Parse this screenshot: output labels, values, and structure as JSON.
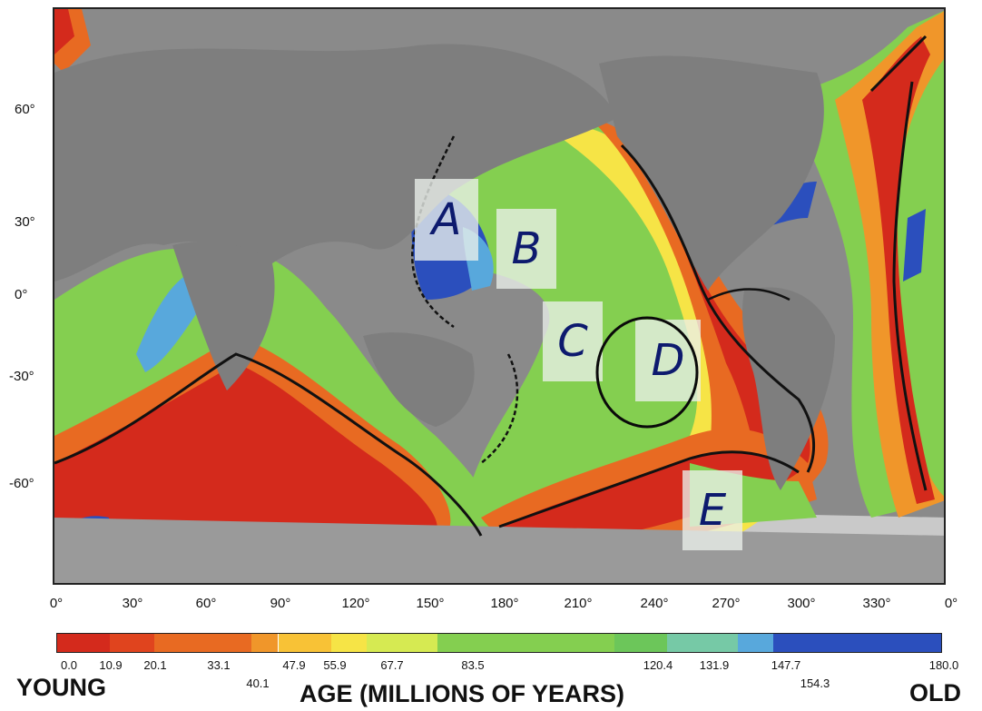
{
  "latitude_labels": [
    "60°",
    "30°",
    "0°",
    "-30°",
    "-60°"
  ],
  "longitude_labels": [
    "0°",
    "30°",
    "60°",
    "90°",
    "120°",
    "150°",
    "180°",
    "210°",
    "240°",
    "270°",
    "300°",
    "330°",
    "0°"
  ],
  "region_letters": [
    "A",
    "B",
    "C",
    "D",
    "E"
  ],
  "circled_letter": "D",
  "legend": {
    "ticks_upper": [
      "0.0",
      "10.9",
      "20.1",
      "33.1",
      "47.9",
      "55.9",
      "67.7",
      "83.5",
      "120.4",
      "131.9",
      "147.7",
      "180.0"
    ],
    "ticks_lower": [
      "40.1",
      "154.3"
    ],
    "young_label": "YOUNG",
    "old_label": "OLD",
    "axis_title": "AGE (MILLIONS OF YEARS)"
  },
  "colors": {
    "land": "#8a8a8a",
    "continental_shelf": "#c9c9c9",
    "ridge_line": "#111111",
    "age_scale": [
      "#d42a1c",
      "#e0441e",
      "#e86a22",
      "#f0962a",
      "#f8c236",
      "#f6e446",
      "#d6ea52",
      "#84cf50",
      "#6cc65a",
      "#76c9a6",
      "#58a8dc",
      "#2b4fbd"
    ],
    "annotation": "#0d1a6e"
  }
}
